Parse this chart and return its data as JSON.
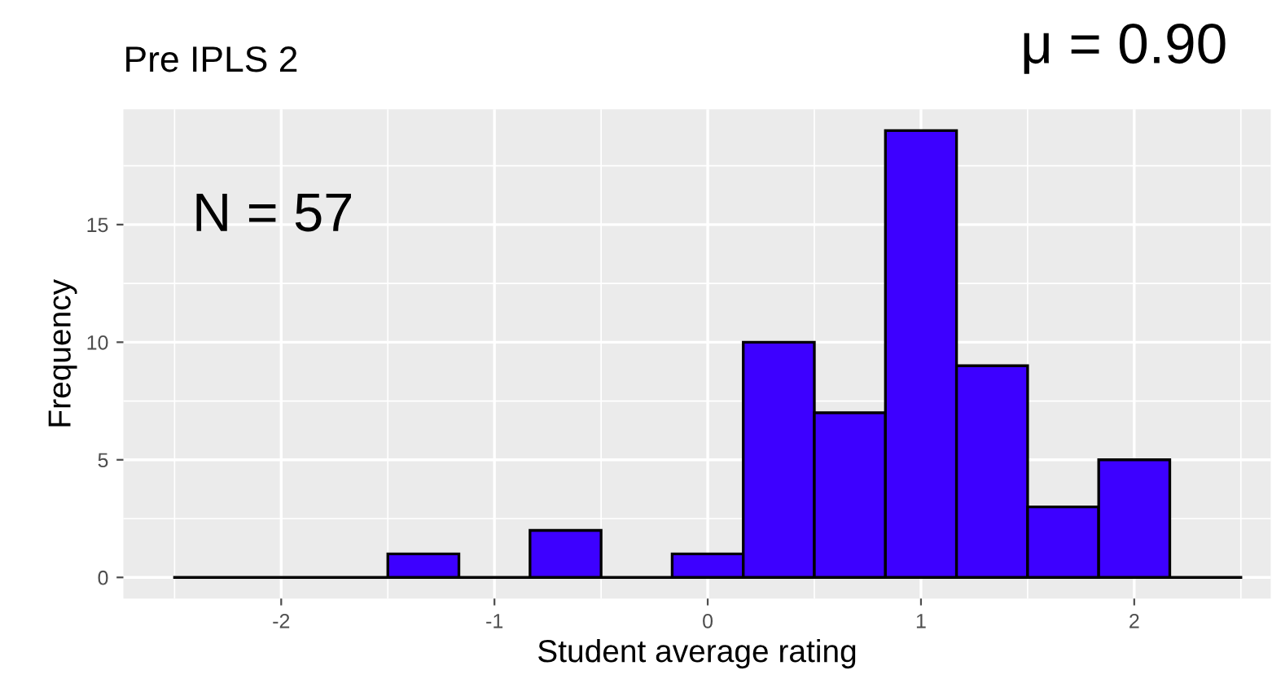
{
  "chart_data": {
    "type": "histogram",
    "title": "Pre IPLS 2",
    "xlabel": "Student average rating",
    "ylabel": "Frequency",
    "bins": [
      -2.5,
      -2.1667,
      -1.8333,
      -1.5,
      -1.1667,
      -0.8333,
      -0.5,
      -0.1667,
      0.1667,
      0.5,
      0.8333,
      1.1667,
      1.5,
      1.8333,
      2.1667,
      2.5
    ],
    "values": [
      0,
      0,
      0,
      1,
      0,
      2,
      0,
      1,
      10,
      7,
      19,
      9,
      3,
      5,
      0
    ],
    "color": "#3d00ff",
    "xlim": [
      -2.74,
      2.64
    ],
    "xticks": [
      -2,
      -1,
      0,
      1,
      2
    ],
    "ylim": [
      -0.9,
      19.9
    ],
    "yticks": [
      0,
      5,
      10,
      15
    ],
    "grid": true,
    "annotations": [
      "N = 57",
      "μ = 0.90"
    ]
  }
}
